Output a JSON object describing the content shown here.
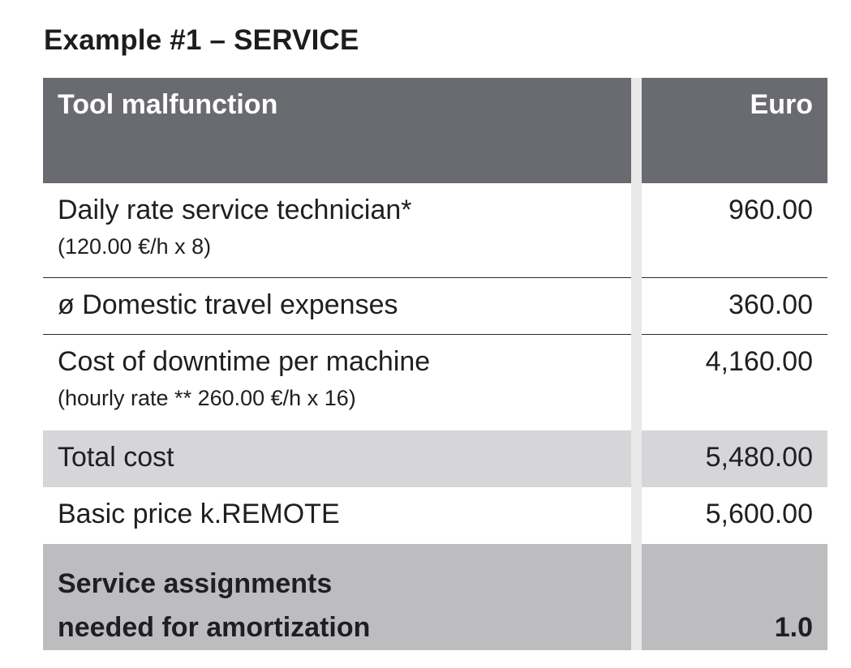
{
  "title": "Example #1 – SERVICE",
  "table": {
    "header": {
      "left": "Tool malfunction",
      "right": "Euro"
    },
    "rows": [
      {
        "label": "Daily rate service technician*",
        "sub": "(120.00 €/h x 8)",
        "value": "960.00"
      },
      {
        "label": "ø Domestic travel expenses",
        "value": "360.00"
      },
      {
        "label": "Cost of downtime per machine",
        "sub": "(hourly rate ** 260.00 €/h x 16)",
        "value": "4,160.00"
      },
      {
        "label": "Total cost",
        "value": "5,480.00"
      },
      {
        "label": "Basic price k.REMOTE",
        "value": "5,600.00"
      }
    ],
    "final": {
      "line1": "Service assignments",
      "line2": "needed for amortization",
      "value": "1.0"
    }
  }
}
